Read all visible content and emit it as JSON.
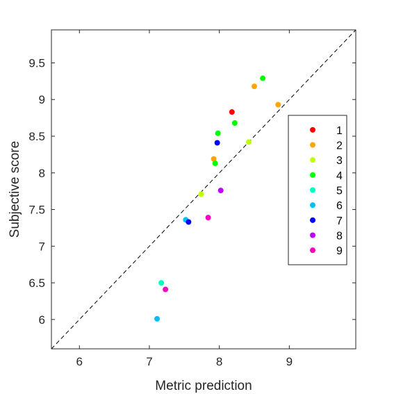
{
  "chart_data": {
    "type": "scatter",
    "title": "",
    "xlabel": "Metric prediction",
    "ylabel": "Subjective score",
    "xlim": [
      5.6,
      9.95
    ],
    "ylim": [
      5.6,
      9.95
    ],
    "xticks": [
      {
        "value": 6,
        "label": "6"
      },
      {
        "value": 7,
        "label": "7"
      },
      {
        "value": 8,
        "label": "8"
      },
      {
        "value": 9,
        "label": "9"
      }
    ],
    "yticks": [
      {
        "value": 6,
        "label": "6"
      },
      {
        "value": 6.5,
        "label": "6.5"
      },
      {
        "value": 7,
        "label": "7"
      },
      {
        "value": 7.5,
        "label": "7.5"
      },
      {
        "value": 8,
        "label": "8"
      },
      {
        "value": 8.5,
        "label": "8.5"
      },
      {
        "value": 9,
        "label": "9"
      },
      {
        "value": 9.5,
        "label": "9.5"
      }
    ],
    "grid": false,
    "reference_line": {
      "style": "dashed",
      "color": "#000000",
      "from": [
        5.6,
        5.6
      ],
      "to": [
        9.95,
        9.95
      ]
    },
    "legend_position": "right",
    "series": [
      {
        "name": "1",
        "color": "#ff0000",
        "points": [
          [
            8.18,
            8.83
          ]
        ]
      },
      {
        "name": "2",
        "color": "#ffa500",
        "points": [
          [
            8.5,
            9.18
          ],
          [
            8.84,
            8.93
          ],
          [
            7.92,
            8.19
          ]
        ]
      },
      {
        "name": "3",
        "color": "#bfff00",
        "points": [
          [
            8.42,
            8.42
          ],
          [
            7.74,
            7.71
          ]
        ]
      },
      {
        "name": "4",
        "color": "#00ff00",
        "points": [
          [
            8.62,
            9.29
          ],
          [
            8.22,
            8.68
          ],
          [
            7.98,
            8.54
          ],
          [
            7.94,
            8.13
          ]
        ]
      },
      {
        "name": "5",
        "color": "#00ffbf",
        "points": [
          [
            7.17,
            6.5
          ]
        ]
      },
      {
        "name": "6",
        "color": "#00bfff",
        "points": [
          [
            7.52,
            7.36
          ],
          [
            7.11,
            6.01
          ]
        ]
      },
      {
        "name": "7",
        "color": "#0000ff",
        "points": [
          [
            7.97,
            8.41
          ],
          [
            7.56,
            7.33
          ]
        ]
      },
      {
        "name": "8",
        "color": "#bf00ff",
        "points": [
          [
            8.02,
            7.76
          ]
        ]
      },
      {
        "name": "9",
        "color": "#ff00bf",
        "points": [
          [
            7.84,
            7.39
          ],
          [
            7.23,
            6.41
          ]
        ]
      }
    ]
  }
}
